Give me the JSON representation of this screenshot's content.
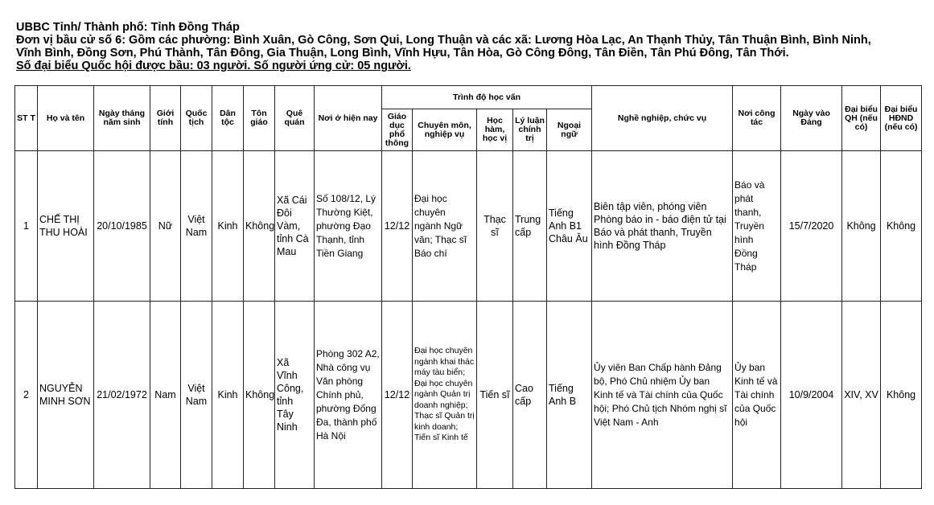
{
  "header": {
    "line1": "UBBC Tỉnh/ Thành phố: Tỉnh Đồng Tháp",
    "line2": "Đơn vị bầu cử số 6: Gồm các phường: Bình Xuân, Gò Công, Sơn Qui, Long Thuận và các xã: Lương Hòa Lạc, An Thạnh Thủy, Tân Thuận Bình, Bình Ninh,",
    "line3": "Vĩnh Bình, Đồng Sơn, Phú Thành, Tân Đông, Gia Thuận, Long Bình, Vĩnh Hựu, Tân Hòa, Gò Công Đông, Tân Điền, Tân Phú Đông, Tân Thới.",
    "line4": "Số đại biểu Quốc hội được bầu: 03 người. Số người ứng cử: 05 người."
  },
  "columns": {
    "stt": "ST T",
    "name": "Họ và tên",
    "dob": "Ngày tháng năm sinh",
    "gender": "Giới tính",
    "nationality": "Quốc tịch",
    "ethnicity": "Dân tộc",
    "religion": "Tôn giáo",
    "hometown": "Quê quán",
    "residence": "Nơi ở hiện nay",
    "education_group": "Trình độ học vấn",
    "general_edu": "Giáo dục phổ thông",
    "specialty": "Chuyên môn, nghiệp vụ",
    "degree": "Học hàm, học vị",
    "politics": "Lý luận chính trị",
    "language": "Ngoại ngữ",
    "occupation": "Nghề nghiệp, chức vụ",
    "workplace": "Nơi công tác",
    "party_date": "Ngày vào Đảng",
    "na_delegate": "Đại biểu QH (nếu có)",
    "pc_delegate": "Đại biểu HĐND (nếu có)"
  },
  "rows": [
    {
      "stt": "1",
      "name": "CHẾ THỊ THU HOÀI",
      "dob": "20/10/1985",
      "gender": "Nữ",
      "nationality": "Việt Nam",
      "ethnicity": "Kinh",
      "religion": "Không",
      "hometown": "Xã Cái Đôi Vàm, tỉnh Cà Mau",
      "residence": "Số 108/12, Lý Thường Kiệt, phường Đạo Thạnh, tỉnh Tiền Giang",
      "general_edu": "12/12",
      "specialty": "Đại học chuyên ngành Ngữ văn; Thạc sĩ Báo chí",
      "degree": "Thạc sĩ",
      "politics": "Trung cấp",
      "language": "Tiếng Anh B1 Châu Âu",
      "occupation": "Biên tập viên, phóng viên Phòng báo in - báo điện tử tại Báo và phát thanh, Truyền hình Đồng Tháp",
      "workplace": "Báo và phát thanh, Truyền hình Đồng Tháp",
      "party_date": "15/7/2020",
      "na_delegate": "Không",
      "pc_delegate": "Không"
    },
    {
      "stt": "2",
      "name": "NGUYỄN MINH SƠN",
      "dob": "21/02/1972",
      "gender": "Nam",
      "nationality": "Việt Nam",
      "ethnicity": "Kinh",
      "religion": "Không",
      "hometown": "Xã Vĩnh Công, tỉnh Tây Ninh",
      "residence": "Phòng 302 A2, Nhà công vụ Văn phòng Chính phủ, phường Đống Đa, thành phố Hà Nội",
      "general_edu": "12/12",
      "specialty": "Đại học chuyên ngành khai thác máy tàu biển; Đại học chuyên ngành Quản trị doanh nghiệp; Thạc sĩ Quản trị kinh doanh; Tiến sĩ Kinh tế",
      "degree": "Tiến sĩ",
      "politics": "Cao cấp",
      "language": "Tiếng Anh B",
      "occupation": "Ủy viên Ban Chấp hành Đảng bộ, Phó Chủ nhiệm Ủy ban Kinh tế và Tài chính của Quốc hội; Phó Chủ tịch Nhóm nghị sĩ Việt Nam - Anh",
      "workplace": "Ủy ban Kinh tế và Tài chính của Quốc hội",
      "party_date": "10/9/2004",
      "na_delegate": "XIV, XV",
      "pc_delegate": "Không"
    }
  ]
}
